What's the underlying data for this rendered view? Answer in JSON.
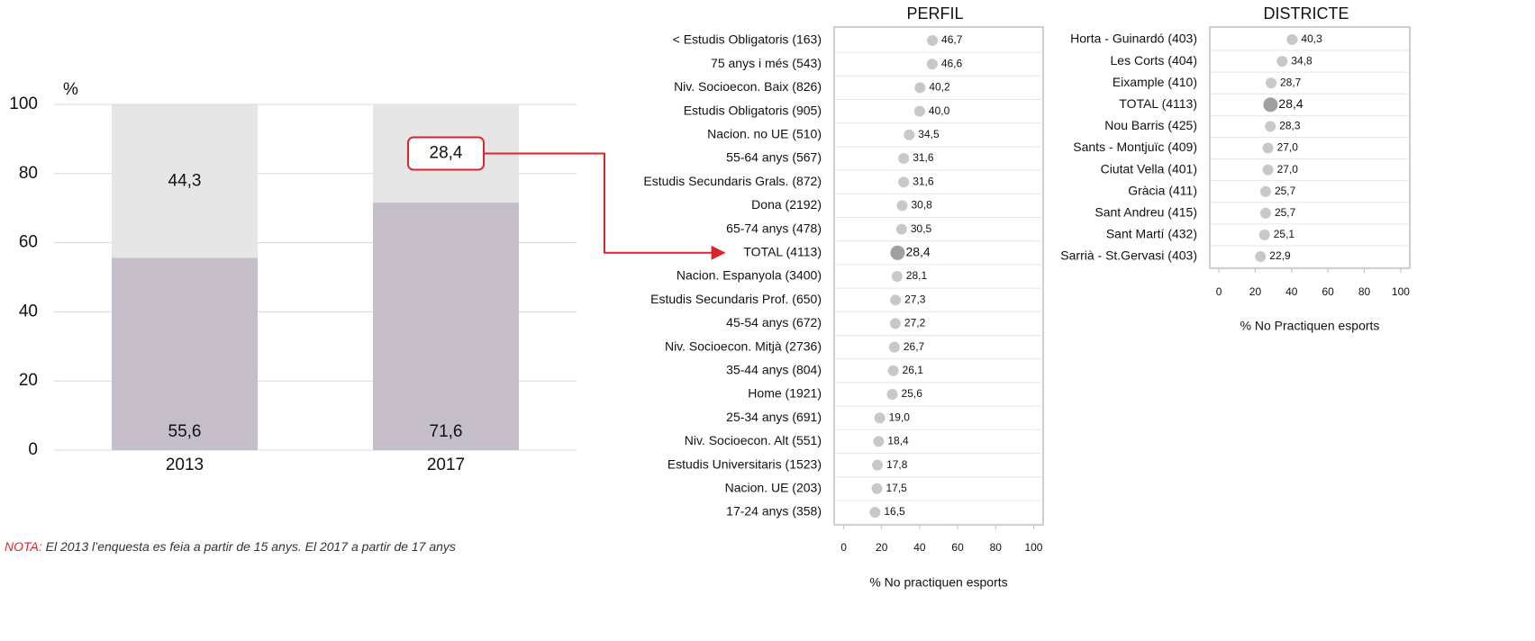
{
  "chart_data": [
    {
      "type": "stacked_bar",
      "categories": [
        "2013",
        "2017"
      ],
      "series": [
        {
          "color": "#c5bec9",
          "values": [
            55.6,
            71.6
          ],
          "value_labels": [
            "55,6",
            "71,6"
          ]
        },
        {
          "color": "#e6e6e6",
          "values": [
            44.3,
            28.4
          ],
          "value_labels": [
            "44,3",
            "28,4"
          ]
        }
      ],
      "ylabel": "%",
      "ylim": [
        0,
        100
      ],
      "yticks": [
        0,
        20,
        40,
        60,
        80,
        100
      ],
      "grid": true,
      "highlight": {
        "series": 1,
        "index": 1,
        "color": "#d7262e"
      },
      "note_label": "NOTA:",
      "note": "El 2013 l’enquesta es feia a partir de 15 anys. El 2017 a partir de 17 anys"
    },
    {
      "type": "dot",
      "title": "PERFIL",
      "categories": [
        "< Estudis Obligatoris (163)",
        "75 anys i més (543)",
        "Niv. Socioecon. Baix (826)",
        "Estudis Obligatoris (905)",
        "Nacion. no UE (510)",
        "55-64 anys (567)",
        "Estudis Secundaris Grals. (872)",
        "Dona (2192)",
        "65-74 anys (478)",
        "TOTAL (4113)",
        "Nacion. Espanyola (3400)",
        "Estudis Secundaris Prof. (650)",
        "45-54 anys (672)",
        "Niv. Socioecon. Mitjà (2736)",
        "35-44 anys (804)",
        "Home (1921)",
        "25-34 anys (691)",
        "Niv. Socioecon. Alt (551)",
        "Estudis Universitaris (1523)",
        "Nacion. UE (203)",
        "17-24 anys (358)"
      ],
      "values": [
        46.7,
        46.6,
        40.2,
        40.0,
        34.5,
        31.6,
        31.6,
        30.8,
        30.5,
        28.4,
        28.1,
        27.3,
        27.2,
        26.7,
        26.1,
        25.6,
        19.0,
        18.4,
        17.8,
        17.5,
        16.5
      ],
      "value_labels": [
        "46,7",
        "46,6",
        "40,2",
        "40,0",
        "34,5",
        "31,6",
        "31,6",
        "30,8",
        "30,5",
        "28,4",
        "28,1",
        "27,3",
        "27,2",
        "26,7",
        "26,1",
        "25,6",
        "19,0",
        "18,4",
        "17,8",
        "17,5",
        "16,5"
      ],
      "color": "#c8c8c8",
      "highlight": {
        "index": 9,
        "color": "#d7262e",
        "marker_color": "#a0a0a0"
      },
      "xlim": [
        -5,
        105
      ],
      "xticks": [
        0,
        20,
        40,
        60,
        80,
        100
      ],
      "xlabel": "% No practiquen esports",
      "grid": true
    },
    {
      "type": "dot",
      "title": "DISTRICTE",
      "categories": [
        "Horta - Guinardó (403)",
        "Les Corts (404)",
        "Eixample (410)",
        "TOTAL (4113)",
        "Nou Barris (425)",
        "Sants - Montjuïc (409)",
        "Ciutat Vella (401)",
        "Gràcia (411)",
        "Sant Andreu (415)",
        "Sant Martí (432)",
        "Sarrià - St.Gervasi (403)"
      ],
      "values": [
        40.3,
        34.8,
        28.7,
        28.4,
        28.3,
        27.0,
        27.0,
        25.7,
        25.7,
        25.1,
        22.9
      ],
      "value_labels": [
        "40,3",
        "34,8",
        "28,7",
        "28,4",
        "28,3",
        "27,0",
        "27,0",
        "25,7",
        "25,7",
        "25,1",
        "22,9"
      ],
      "color": "#c8c8c8",
      "highlight": {
        "index": 3,
        "color": "#d7262e",
        "marker_color": "#a0a0a0"
      },
      "xlim": [
        -5,
        105
      ],
      "xticks": [
        0,
        20,
        40,
        60,
        80,
        100
      ],
      "xlabel": "% No Practiquen esports",
      "grid": true
    }
  ]
}
